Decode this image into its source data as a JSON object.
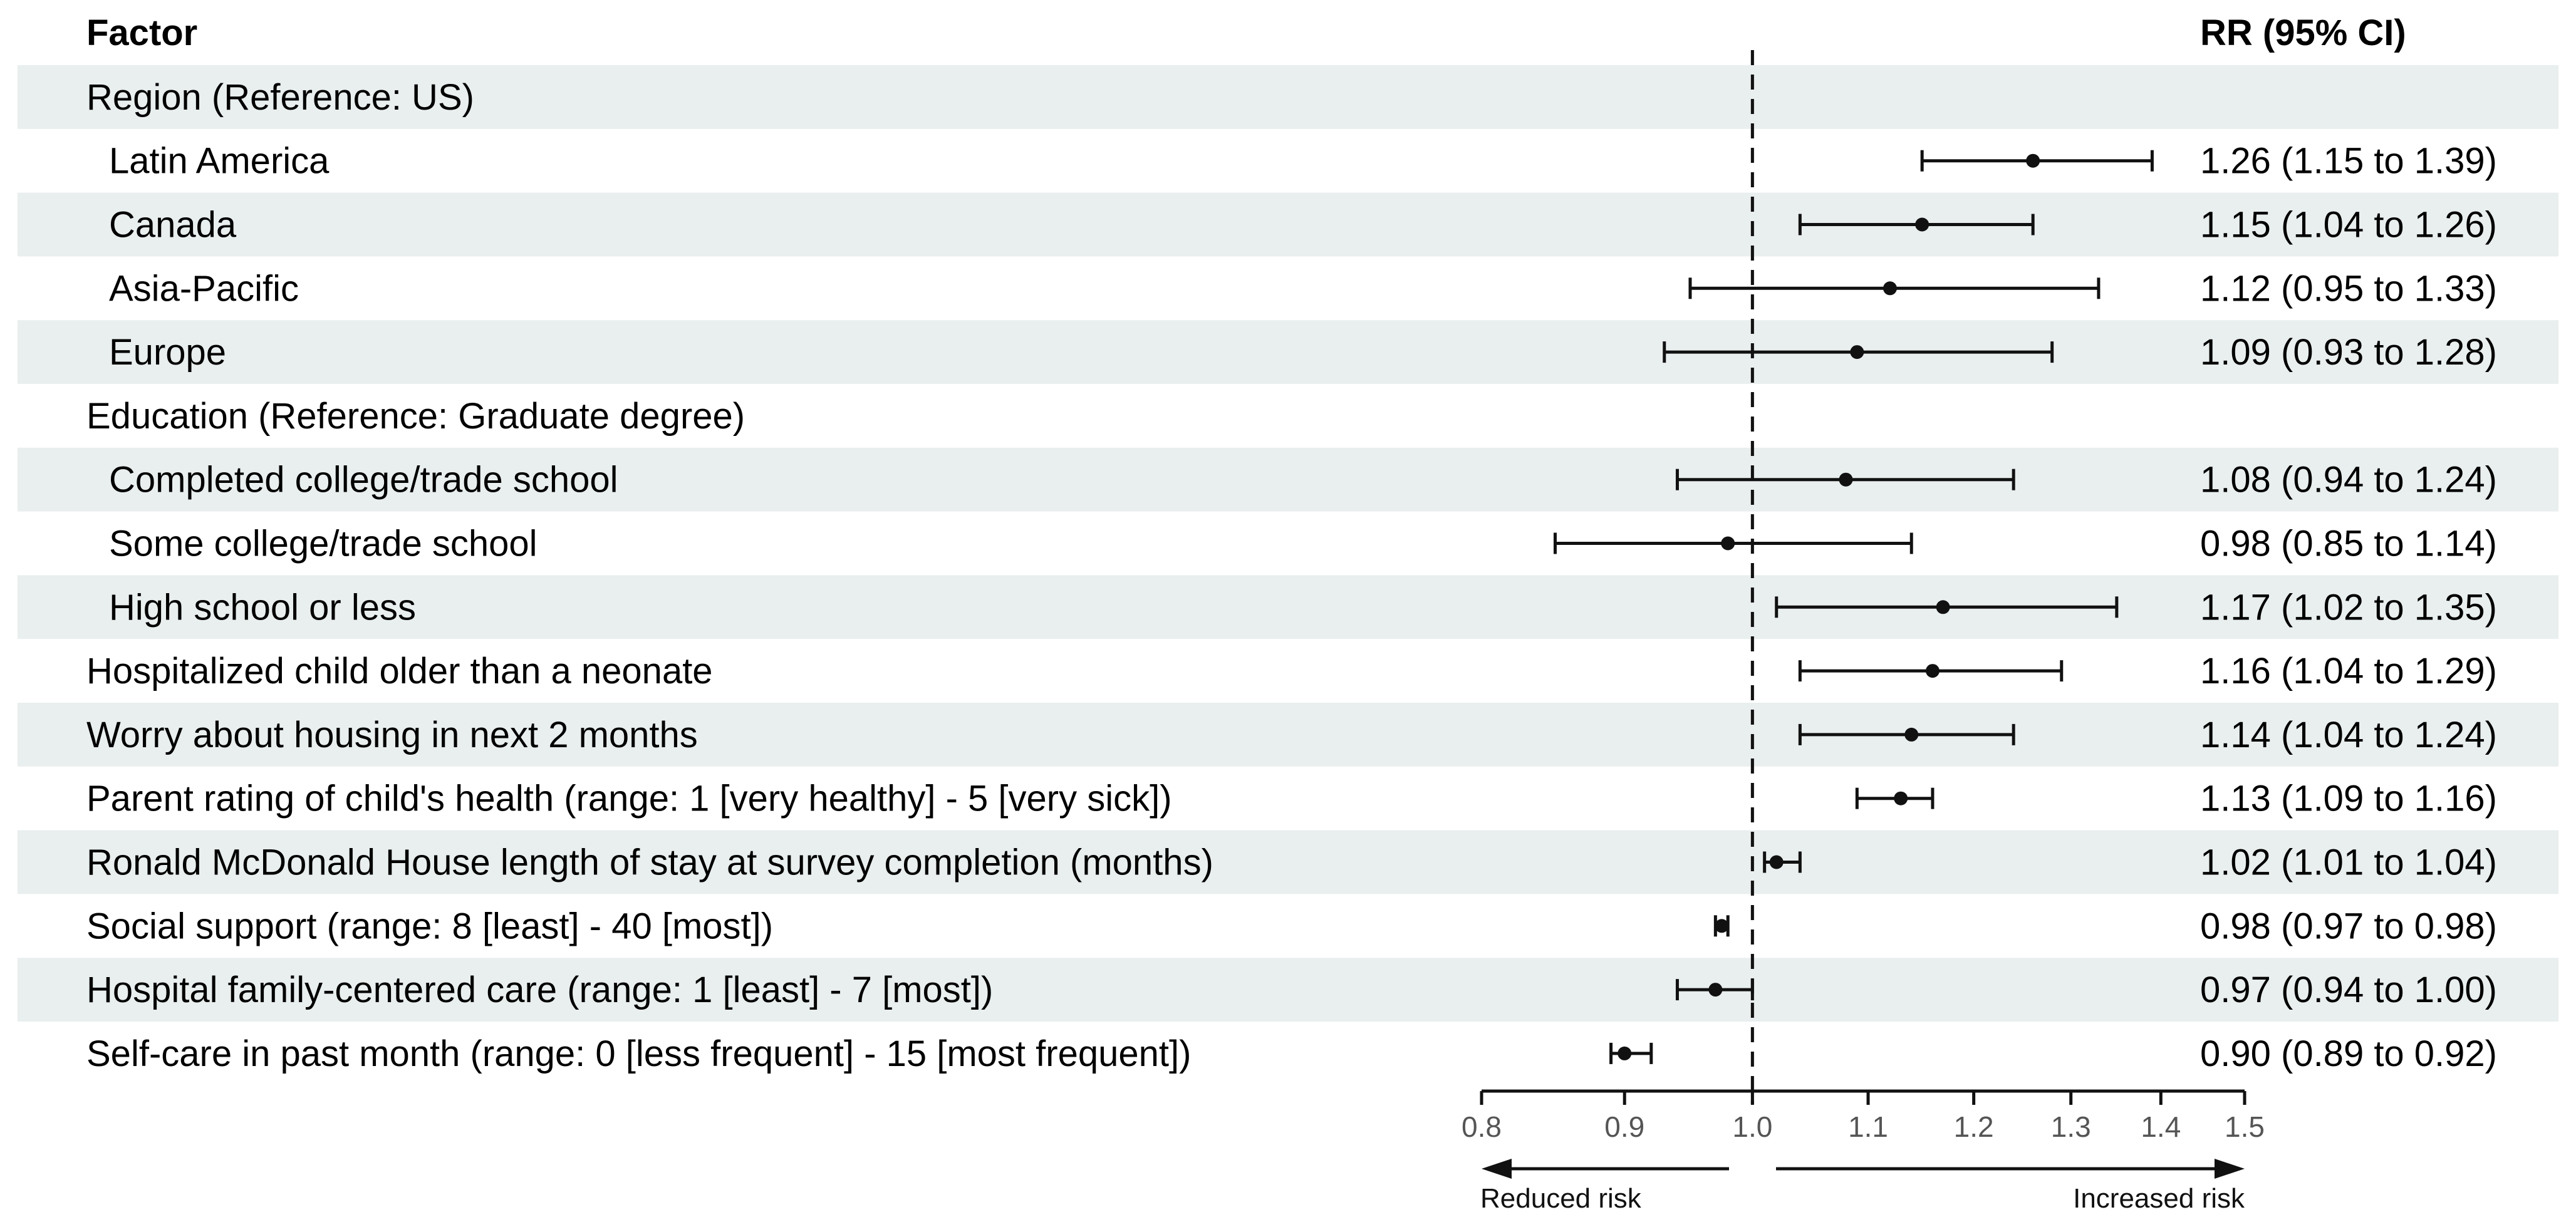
{
  "header": {
    "factor_label": "Factor",
    "rr_label": "RR (95% CI)"
  },
  "colors": {
    "band": "#e9eeee",
    "ink": "#111111",
    "tick_text": "#555555"
  },
  "chart_data": {
    "type": "forest",
    "xlim": [
      0.8,
      1.5
    ],
    "xscale": "log",
    "reference_value": 1.0,
    "ticks": [
      {
        "value": 0.8,
        "label": "0.8"
      },
      {
        "value": 0.9,
        "label": "0.9"
      },
      {
        "value": 1.0,
        "label": "1.0"
      },
      {
        "value": 1.1,
        "label": "1.1"
      },
      {
        "value": 1.2,
        "label": "1.2"
      },
      {
        "value": 1.3,
        "label": "1.3"
      },
      {
        "value": 1.4,
        "label": "1.4"
      },
      {
        "value": 1.5,
        "label": "1.5"
      }
    ],
    "left_arrow_label": "Reduced risk",
    "right_arrow_label": "Increased risk",
    "rows": [
      {
        "label": "Region (Reference: US)",
        "indent": false,
        "banded": true,
        "rr": null,
        "lo": null,
        "hi": null,
        "text": ""
      },
      {
        "label": "Latin America",
        "indent": true,
        "banded": false,
        "rr": 1.26,
        "lo": 1.15,
        "hi": 1.39,
        "text": "1.26 (1.15 to 1.39)"
      },
      {
        "label": "Canada",
        "indent": true,
        "banded": true,
        "rr": 1.15,
        "lo": 1.04,
        "hi": 1.26,
        "text": "1.15 (1.04 to 1.26)"
      },
      {
        "label": "Asia-Pacific",
        "indent": true,
        "banded": false,
        "rr": 1.12,
        "lo": 0.95,
        "hi": 1.33,
        "text": "1.12 (0.95 to 1.33)"
      },
      {
        "label": "Europe",
        "indent": true,
        "banded": true,
        "rr": 1.09,
        "lo": 0.93,
        "hi": 1.28,
        "text": "1.09 (0.93 to 1.28)"
      },
      {
        "label": "Education (Reference: Graduate degree)",
        "indent": false,
        "banded": false,
        "rr": null,
        "lo": null,
        "hi": null,
        "text": ""
      },
      {
        "label": "Completed college/trade school",
        "indent": true,
        "banded": true,
        "rr": 1.08,
        "lo": 0.94,
        "hi": 1.24,
        "text": "1.08 (0.94 to 1.24)"
      },
      {
        "label": "Some college/trade school",
        "indent": true,
        "banded": false,
        "rr": 0.98,
        "lo": 0.85,
        "hi": 1.14,
        "text": "0.98 (0.85 to 1.14)"
      },
      {
        "label": "High school or less",
        "indent": true,
        "banded": true,
        "rr": 1.17,
        "lo": 1.02,
        "hi": 1.35,
        "text": "1.17 (1.02 to 1.35)"
      },
      {
        "label": "Hospitalized child older than a neonate",
        "indent": false,
        "banded": false,
        "rr": 1.16,
        "lo": 1.04,
        "hi": 1.29,
        "text": "1.16 (1.04 to 1.29)"
      },
      {
        "label": "Worry about housing in next 2 months",
        "indent": false,
        "banded": true,
        "rr": 1.14,
        "lo": 1.04,
        "hi": 1.24,
        "text": "1.14 (1.04 to 1.24)"
      },
      {
        "label": "Parent rating of child's health (range: 1 [very healthy] - 5 [very sick])",
        "indent": false,
        "banded": false,
        "rr": 1.13,
        "lo": 1.09,
        "hi": 1.16,
        "text": "1.13 (1.09 to 1.16)"
      },
      {
        "label": "Ronald McDonald House length of stay at survey completion (months)",
        "indent": false,
        "banded": true,
        "rr": 1.02,
        "lo": 1.01,
        "hi": 1.04,
        "text": "1.02 (1.01 to 1.04)"
      },
      {
        "label": "Social support (range: 8 [least] - 40 [most])",
        "indent": false,
        "banded": false,
        "rr": 0.975,
        "lo": 0.97,
        "hi": 0.98,
        "text": "0.98 (0.97 to 0.98)"
      },
      {
        "label": "Hospital family-centered care (range: 1 [least] - 7 [most])",
        "indent": false,
        "banded": true,
        "rr": 0.97,
        "lo": 0.94,
        "hi": 1.0,
        "text": "0.97 (0.94 to 1.00)"
      },
      {
        "label": "Self-care in past month (range: 0 [less frequent] - 15 [most frequent])",
        "indent": false,
        "banded": false,
        "rr": 0.9,
        "lo": 0.89,
        "hi": 0.92,
        "text": "0.90 (0.89 to 0.92)"
      }
    ]
  }
}
